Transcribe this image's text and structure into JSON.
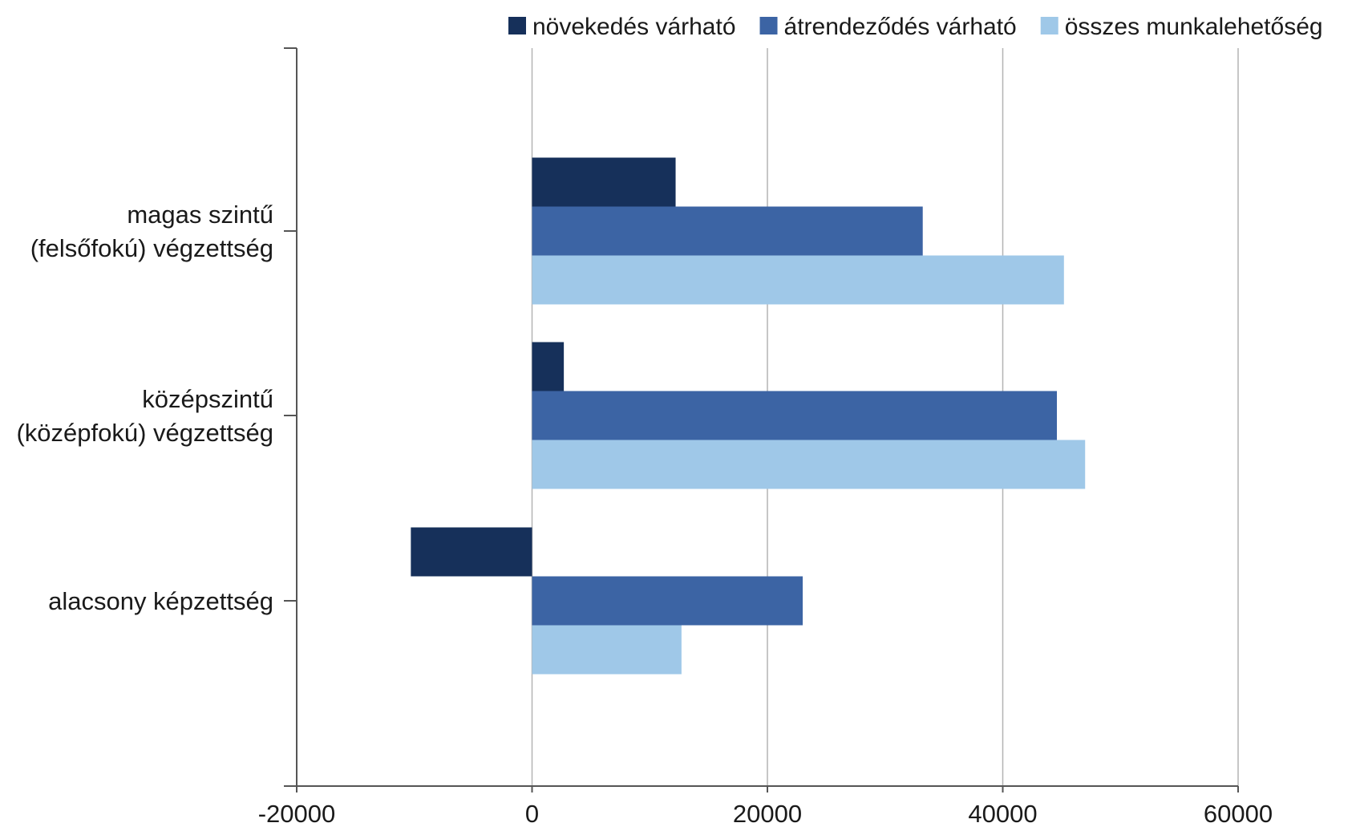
{
  "chart_data": {
    "type": "bar",
    "orientation": "horizontal",
    "categories": [
      [
        "magas szintű",
        "(felsőfokú) végzettség"
      ],
      [
        "középszintű",
        "(középfokú) végzettség"
      ],
      [
        "alacsony képzettség"
      ]
    ],
    "series": [
      {
        "name": "növekedés várható",
        "color": "#16305a",
        "values": [
          12200,
          2700,
          -10300
        ]
      },
      {
        "name": "átrendeződés várható",
        "color": "#3c64a4",
        "values": [
          33200,
          44600,
          23000
        ]
      },
      {
        "name": "összes munkalehetőség",
        "color": "#9fc8e8",
        "values": [
          45200,
          47000,
          12700
        ]
      }
    ],
    "xlim": [
      -20000,
      60000
    ],
    "xticks": [
      -20000,
      0,
      20000,
      40000,
      60000
    ],
    "xtick_labels": [
      "-20000",
      "0",
      "20000",
      "40000",
      "60000"
    ],
    "grid": "vertical",
    "legend_position": "top-right"
  }
}
